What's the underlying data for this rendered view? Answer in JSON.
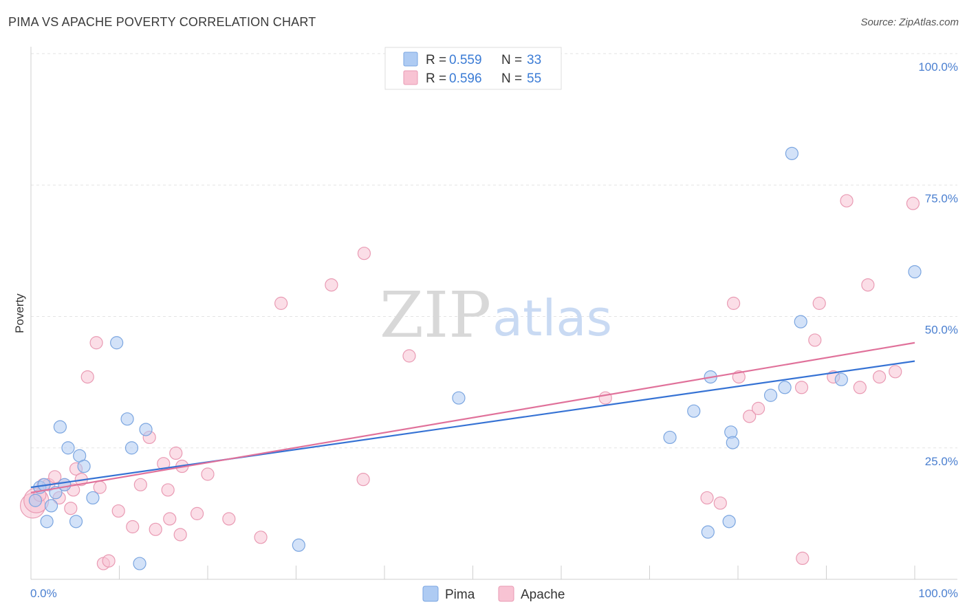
{
  "header": {
    "title": "PIMA VS APACHE POVERTY CORRELATION CHART",
    "source": "Source: ZipAtlas.com"
  },
  "watermark": {
    "zip": "ZIP",
    "atlas": "atlas"
  },
  "legend": {
    "r_label": "R =",
    "n_label": "N =",
    "rows": [
      {
        "series": "Pima",
        "r": "0.559",
        "n": "33"
      },
      {
        "series": "Apache",
        "r": "0.596",
        "n": "55"
      }
    ]
  },
  "chart_data": {
    "type": "scatter",
    "title": "PIMA VS APACHE POVERTY CORRELATION CHART",
    "xlabel": "",
    "ylabel": "Poverty",
    "xlim": [
      0,
      100
    ],
    "ylim": [
      0,
      100
    ],
    "x_tick_labels": [
      "0.0%",
      "100.0%"
    ],
    "y_tick_labels": [
      "100.0%",
      "75.0%",
      "50.0%",
      "25.0%"
    ],
    "y_ticks": [
      100,
      75,
      50,
      25
    ],
    "grid": "horizontal dashed",
    "legend_position": "top-center",
    "colors": {
      "Pima": {
        "fill": "#aecbf3",
        "stroke": "#7aa5e0",
        "line": "#3572d4"
      },
      "Apache": {
        "fill": "#f8c3d3",
        "stroke": "#e99ab3",
        "line": "#e0719a"
      }
    },
    "series": [
      {
        "name": "Pima",
        "trendline": {
          "x": [
            0,
            100
          ],
          "y": [
            17.5,
            41.5
          ]
        },
        "points": [
          {
            "x": 0.5,
            "y": 15.0
          },
          {
            "x": 1.0,
            "y": 17.5
          },
          {
            "x": 1.5,
            "y": 18.0
          },
          {
            "x": 1.8,
            "y": 11.0
          },
          {
            "x": 2.3,
            "y": 14.0
          },
          {
            "x": 2.8,
            "y": 16.5
          },
          {
            "x": 3.3,
            "y": 29.0
          },
          {
            "x": 3.8,
            "y": 18.0
          },
          {
            "x": 4.2,
            "y": 25.0
          },
          {
            "x": 5.1,
            "y": 11.0
          },
          {
            "x": 5.5,
            "y": 23.5
          },
          {
            "x": 6.0,
            "y": 21.5
          },
          {
            "x": 7.0,
            "y": 15.5
          },
          {
            "x": 9.7,
            "y": 45.0
          },
          {
            "x": 10.9,
            "y": 30.5
          },
          {
            "x": 11.4,
            "y": 25.0
          },
          {
            "x": 12.3,
            "y": 3.0
          },
          {
            "x": 13.0,
            "y": 28.5
          },
          {
            "x": 30.3,
            "y": 6.5
          },
          {
            "x": 48.4,
            "y": 34.5
          },
          {
            "x": 72.3,
            "y": 27.0
          },
          {
            "x": 75.0,
            "y": 32.0
          },
          {
            "x": 76.6,
            "y": 9.0
          },
          {
            "x": 76.9,
            "y": 38.5
          },
          {
            "x": 79.0,
            "y": 11.0
          },
          {
            "x": 79.2,
            "y": 28.0
          },
          {
            "x": 79.4,
            "y": 26.0
          },
          {
            "x": 83.7,
            "y": 35.0
          },
          {
            "x": 85.3,
            "y": 36.5
          },
          {
            "x": 86.1,
            "y": 81.0
          },
          {
            "x": 87.1,
            "y": 49.0
          },
          {
            "x": 91.7,
            "y": 38.0
          },
          {
            "x": 100.0,
            "y": 58.5
          }
        ]
      },
      {
        "name": "Apache",
        "trendline": {
          "x": [
            0,
            100
          ],
          "y": [
            16.5,
            45.0
          ]
        },
        "points": [
          {
            "x": 0.2,
            "y": 14.0
          },
          {
            "x": 0.6,
            "y": 15.0
          },
          {
            "x": 1.0,
            "y": 16.0
          },
          {
            "x": 1.4,
            "y": 18.0
          },
          {
            "x": 2.0,
            "y": 18.0
          },
          {
            "x": 2.7,
            "y": 19.5
          },
          {
            "x": 3.2,
            "y": 15.5
          },
          {
            "x": 3.8,
            "y": 18.0
          },
          {
            "x": 4.5,
            "y": 13.5
          },
          {
            "x": 4.8,
            "y": 17.0
          },
          {
            "x": 5.1,
            "y": 21.0
          },
          {
            "x": 5.7,
            "y": 19.0
          },
          {
            "x": 6.4,
            "y": 38.5
          },
          {
            "x": 7.4,
            "y": 45.0
          },
          {
            "x": 7.8,
            "y": 17.5
          },
          {
            "x": 8.2,
            "y": 3.0
          },
          {
            "x": 8.8,
            "y": 3.5
          },
          {
            "x": 9.9,
            "y": 13.0
          },
          {
            "x": 11.5,
            "y": 10.0
          },
          {
            "x": 12.4,
            "y": 18.0
          },
          {
            "x": 13.4,
            "y": 27.0
          },
          {
            "x": 14.1,
            "y": 9.5
          },
          {
            "x": 15.0,
            "y": 22.0
          },
          {
            "x": 15.5,
            "y": 17.0
          },
          {
            "x": 15.7,
            "y": 11.5
          },
          {
            "x": 16.4,
            "y": 24.0
          },
          {
            "x": 16.9,
            "y": 8.5
          },
          {
            "x": 17.1,
            "y": 21.5
          },
          {
            "x": 18.8,
            "y": 12.5
          },
          {
            "x": 20.0,
            "y": 20.0
          },
          {
            "x": 22.4,
            "y": 11.5
          },
          {
            "x": 26.0,
            "y": 8.0
          },
          {
            "x": 28.3,
            "y": 52.5
          },
          {
            "x": 34.0,
            "y": 56.0
          },
          {
            "x": 37.6,
            "y": 19.0
          },
          {
            "x": 37.7,
            "y": 62.0
          },
          {
            "x": 42.8,
            "y": 42.5
          },
          {
            "x": 65.0,
            "y": 34.5
          },
          {
            "x": 76.5,
            "y": 15.5
          },
          {
            "x": 78.0,
            "y": 14.5
          },
          {
            "x": 79.5,
            "y": 52.5
          },
          {
            "x": 80.1,
            "y": 38.5
          },
          {
            "x": 81.3,
            "y": 31.0
          },
          {
            "x": 82.3,
            "y": 32.5
          },
          {
            "x": 87.2,
            "y": 36.5
          },
          {
            "x": 87.3,
            "y": 4.0
          },
          {
            "x": 88.7,
            "y": 45.5
          },
          {
            "x": 89.2,
            "y": 52.5
          },
          {
            "x": 90.8,
            "y": 38.5
          },
          {
            "x": 92.3,
            "y": 72.0
          },
          {
            "x": 93.8,
            "y": 36.5
          },
          {
            "x": 94.7,
            "y": 56.0
          },
          {
            "x": 96.0,
            "y": 38.5
          },
          {
            "x": 97.8,
            "y": 39.5
          },
          {
            "x": 99.8,
            "y": 71.5
          }
        ]
      }
    ]
  }
}
